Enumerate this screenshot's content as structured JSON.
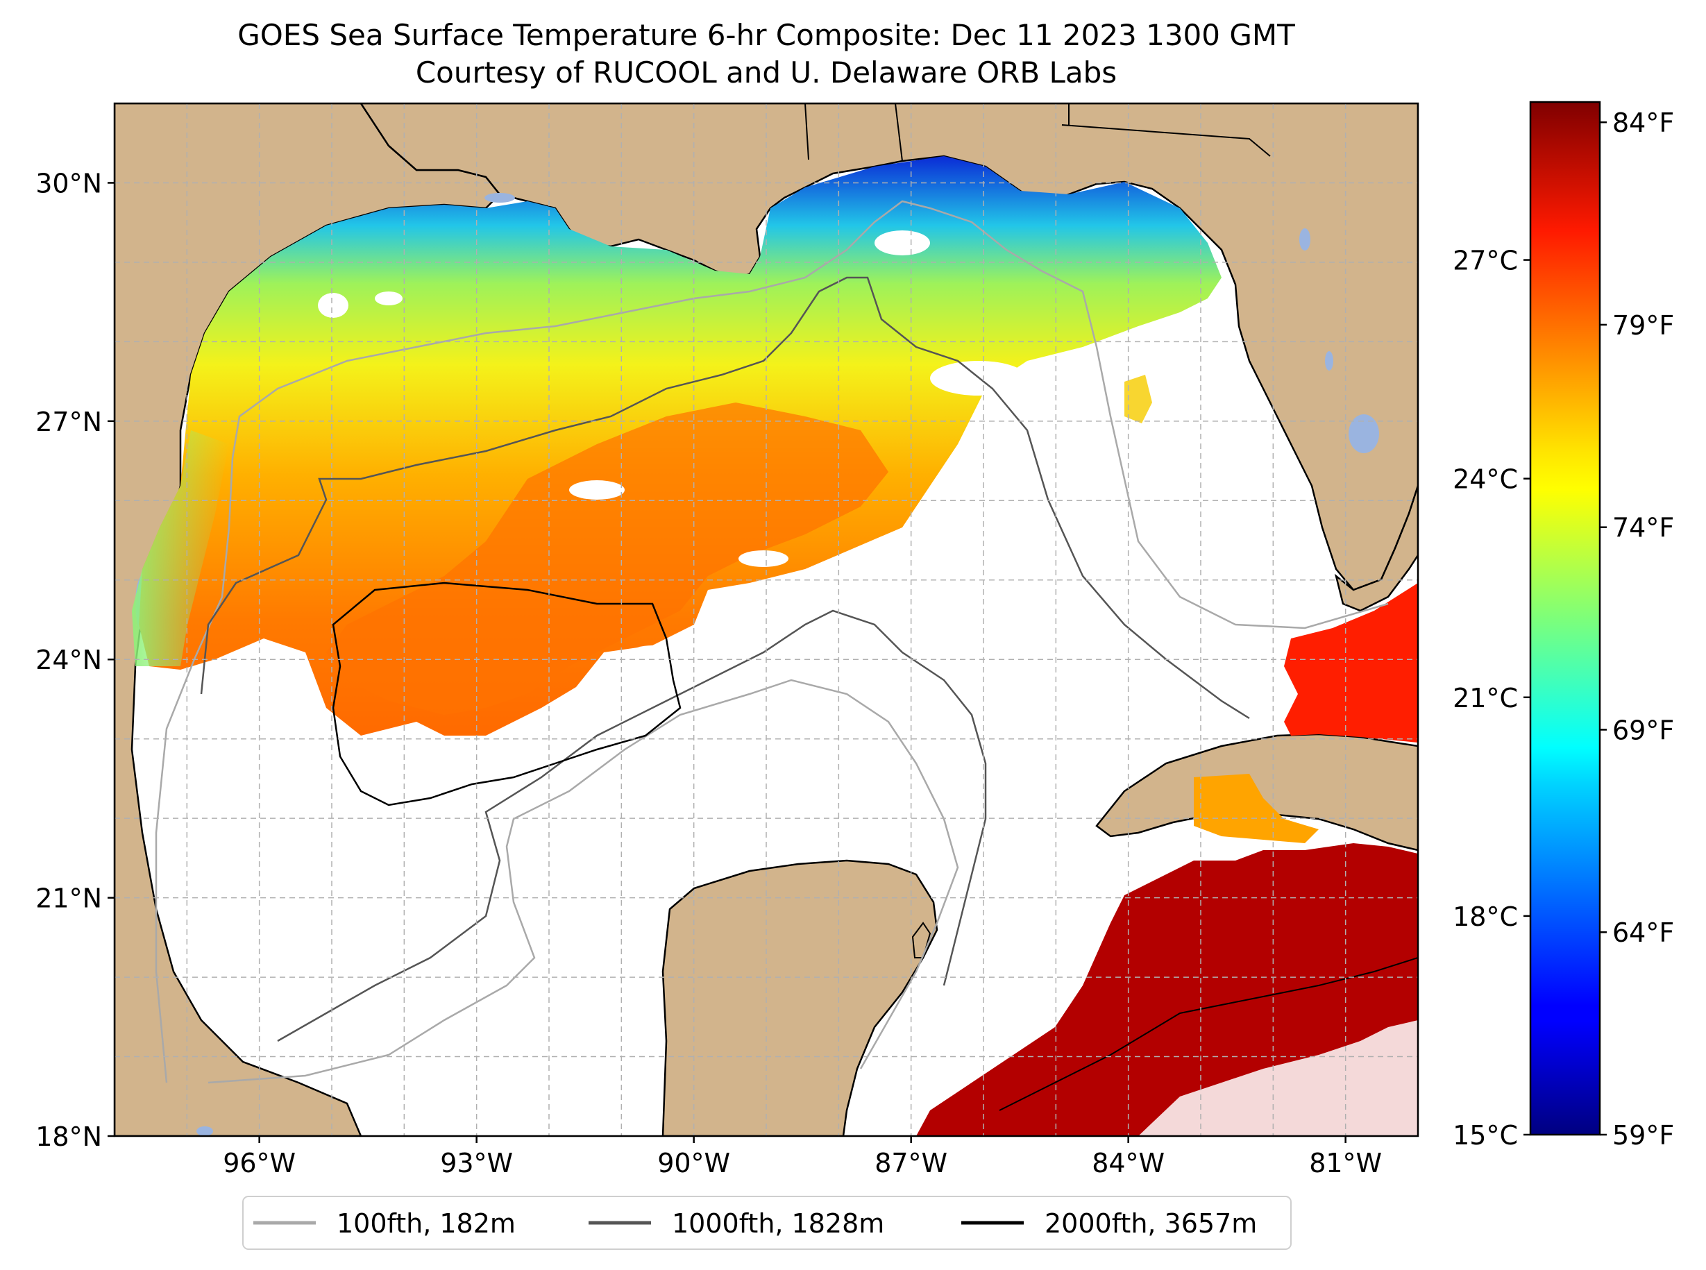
{
  "title": {
    "line1": "GOES Sea Surface Temperature 6-hr Composite: Dec 11 2023 1300 GMT",
    "line2": "Courtesy of RUCOOL and U. Delaware ORB Labs"
  },
  "map": {
    "region": "Gulf of Mexico",
    "extent": {
      "lon_min": -98,
      "lon_max": -80,
      "lat_min": 18,
      "lat_max": 31
    },
    "lat_ticks": [
      {
        "value": 18,
        "label": "18°N"
      },
      {
        "value": 21,
        "label": "21°N"
      },
      {
        "value": 24,
        "label": "24°N"
      },
      {
        "value": 27,
        "label": "27°N"
      },
      {
        "value": 30,
        "label": "30°N"
      }
    ],
    "lon_ticks": [
      {
        "value": -96,
        "label": "96°W"
      },
      {
        "value": -93,
        "label": "93°W"
      },
      {
        "value": -90,
        "label": "90°W"
      },
      {
        "value": -87,
        "label": "87°W"
      },
      {
        "value": -84,
        "label": "84°W"
      },
      {
        "value": -81,
        "label": "81°W"
      }
    ],
    "gridlines": true,
    "colors": {
      "land": "#d2b48c",
      "water_no_data": "#ffffff",
      "lakes": "#9ab4e0",
      "grid": "#b0b0b0"
    }
  },
  "colorbar": {
    "colormap": "jet",
    "celsius_ticks": [
      {
        "value": 15,
        "label": "15°C"
      },
      {
        "value": 18,
        "label": "18°C"
      },
      {
        "value": 21,
        "label": "21°C"
      },
      {
        "value": 24,
        "label": "24°C"
      },
      {
        "value": 27,
        "label": "27°C"
      }
    ],
    "fahrenheit_ticks": [
      {
        "value": 59,
        "label": "59°F"
      },
      {
        "value": 64,
        "label": "64°F"
      },
      {
        "value": 69,
        "label": "69°F"
      },
      {
        "value": 74,
        "label": "74°F"
      },
      {
        "value": 79,
        "label": "79°F"
      },
      {
        "value": 84,
        "label": "84°F"
      }
    ],
    "range_f": [
      59,
      84.5
    ]
  },
  "legend": {
    "placement": "bottom",
    "items": [
      {
        "label": "100fth, 182m",
        "color": "#a9a9a9"
      },
      {
        "label": "1000fth, 1828m",
        "color": "#555555"
      },
      {
        "label": "2000fth, 3657m",
        "color": "#000000"
      }
    ]
  }
}
